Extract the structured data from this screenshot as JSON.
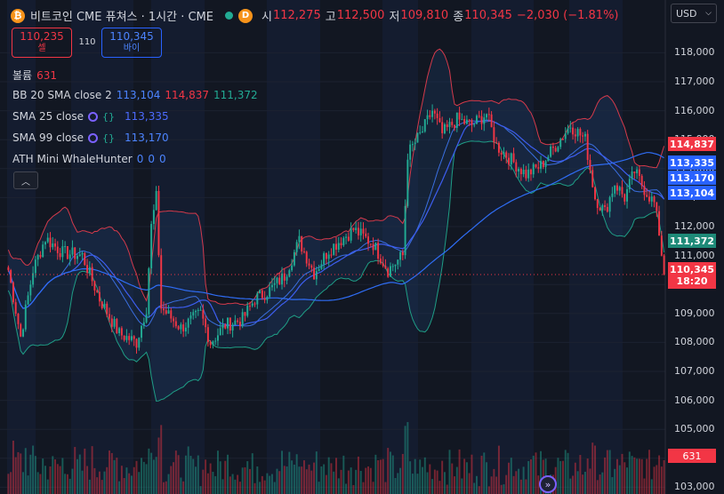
{
  "header": {
    "symbol_icon": "bitcoin-icon",
    "title": "비트코인 CME 퓨쳐스 · 1시간 · CME",
    "d_badge": "D",
    "open_label": "시",
    "open_value": "112,275",
    "high_label": "고",
    "high_value": "112,500",
    "low_label": "저",
    "low_value": "109,810",
    "close_label": "종",
    "close_value": "110,345",
    "change": "−2,030 (−1.81%)"
  },
  "trade": {
    "sell_price": "110,235",
    "sell_label": "셀",
    "spread": "110",
    "buy_price": "110,345",
    "buy_label": "바이"
  },
  "indicators": {
    "volume_label": "볼륨",
    "volume_value": "631",
    "bb_label": "BB 20 SMA close 2",
    "bb_basis": "113,104",
    "bb_upper": "114,837",
    "bb_lower": "111,372",
    "sma25_label": "SMA 25 close",
    "sma25_value": "113,335",
    "sma99_label": "SMA 99 close",
    "sma99_value": "113,170",
    "ath_label": "ATH Mini WhaleHunter",
    "ath_v1": "0",
    "ath_v2": "0",
    "ath_v3": "0"
  },
  "currency": "USD",
  "price_axis": [
    "117,000",
    "116,000",
    "115,000",
    "114,000",
    "113,000",
    "112,000",
    "111,000",
    "110,000",
    "109,000",
    "108,000",
    "107,000",
    "106,000",
    "105,000",
    "104,000",
    "103,000"
  ],
  "price_axis_top_partial": "118,000",
  "tags": {
    "bb_upper": "114,837",
    "sma25": "113,335",
    "sma99": "113,170",
    "bb_basis": "113,104",
    "bb_lower": "111,372",
    "last_price": "110,345",
    "countdown": "18:20",
    "volume": "631"
  },
  "colors": {
    "background": "#121722",
    "up": "#22ab94",
    "down": "#f23645",
    "bb_upper": "#d43a4b",
    "bb_lower": "#1f9e86",
    "bb_basis": "#3a6fe0",
    "sma25": "#3d5ef0",
    "sma99": "#2f6df5",
    "blue_tag": "#2962ff",
    "green_tag": "#1e8a78"
  },
  "chart_data": {
    "type": "candlestick",
    "ylim": [
      102700,
      119000
    ],
    "indicators": [
      "Bollinger Bands 20 SMA close 2",
      "SMA 25",
      "SMA 99",
      "Volume"
    ],
    "last_price": 110345,
    "keypoints": [
      {
        "i": 0,
        "p": 110500
      },
      {
        "i": 5,
        "p": 108200
      },
      {
        "i": 10,
        "p": 110500
      },
      {
        "i": 15,
        "p": 111600
      },
      {
        "i": 22,
        "p": 111100
      },
      {
        "i": 30,
        "p": 111000
      },
      {
        "i": 37,
        "p": 109500
      },
      {
        "i": 45,
        "p": 108300
      },
      {
        "i": 52,
        "p": 108000
      },
      {
        "i": 56,
        "p": 109200
      },
      {
        "i": 58,
        "p": 112000
      },
      {
        "i": 60,
        "p": 113000
      },
      {
        "i": 62,
        "p": 109200
      },
      {
        "i": 70,
        "p": 108500
      },
      {
        "i": 78,
        "p": 109000
      },
      {
        "i": 82,
        "p": 108000
      },
      {
        "i": 88,
        "p": 108600
      },
      {
        "i": 95,
        "p": 108800
      },
      {
        "i": 100,
        "p": 109500
      },
      {
        "i": 106,
        "p": 109800
      },
      {
        "i": 112,
        "p": 110300
      },
      {
        "i": 118,
        "p": 111500
      },
      {
        "i": 124,
        "p": 110400
      },
      {
        "i": 130,
        "p": 111200
      },
      {
        "i": 140,
        "p": 111900
      },
      {
        "i": 148,
        "p": 111400
      },
      {
        "i": 154,
        "p": 110500
      },
      {
        "i": 160,
        "p": 111000
      },
      {
        "i": 162,
        "p": 114500
      },
      {
        "i": 168,
        "p": 115300
      },
      {
        "i": 172,
        "p": 116000
      },
      {
        "i": 176,
        "p": 115200
      },
      {
        "i": 182,
        "p": 115700
      },
      {
        "i": 188,
        "p": 115500
      },
      {
        "i": 194,
        "p": 115900
      },
      {
        "i": 198,
        "p": 114800
      },
      {
        "i": 204,
        "p": 114300
      },
      {
        "i": 210,
        "p": 113800
      },
      {
        "i": 216,
        "p": 114100
      },
      {
        "i": 222,
        "p": 114800
      },
      {
        "i": 228,
        "p": 115500
      },
      {
        "i": 234,
        "p": 115000
      },
      {
        "i": 238,
        "p": 113000
      },
      {
        "i": 242,
        "p": 112500
      },
      {
        "i": 246,
        "p": 113500
      },
      {
        "i": 250,
        "p": 113000
      },
      {
        "i": 254,
        "p": 113900
      },
      {
        "i": 258,
        "p": 113300
      },
      {
        "i": 262,
        "p": 112800
      },
      {
        "i": 264,
        "p": 111800
      },
      {
        "i": 266,
        "p": 110345
      }
    ]
  }
}
